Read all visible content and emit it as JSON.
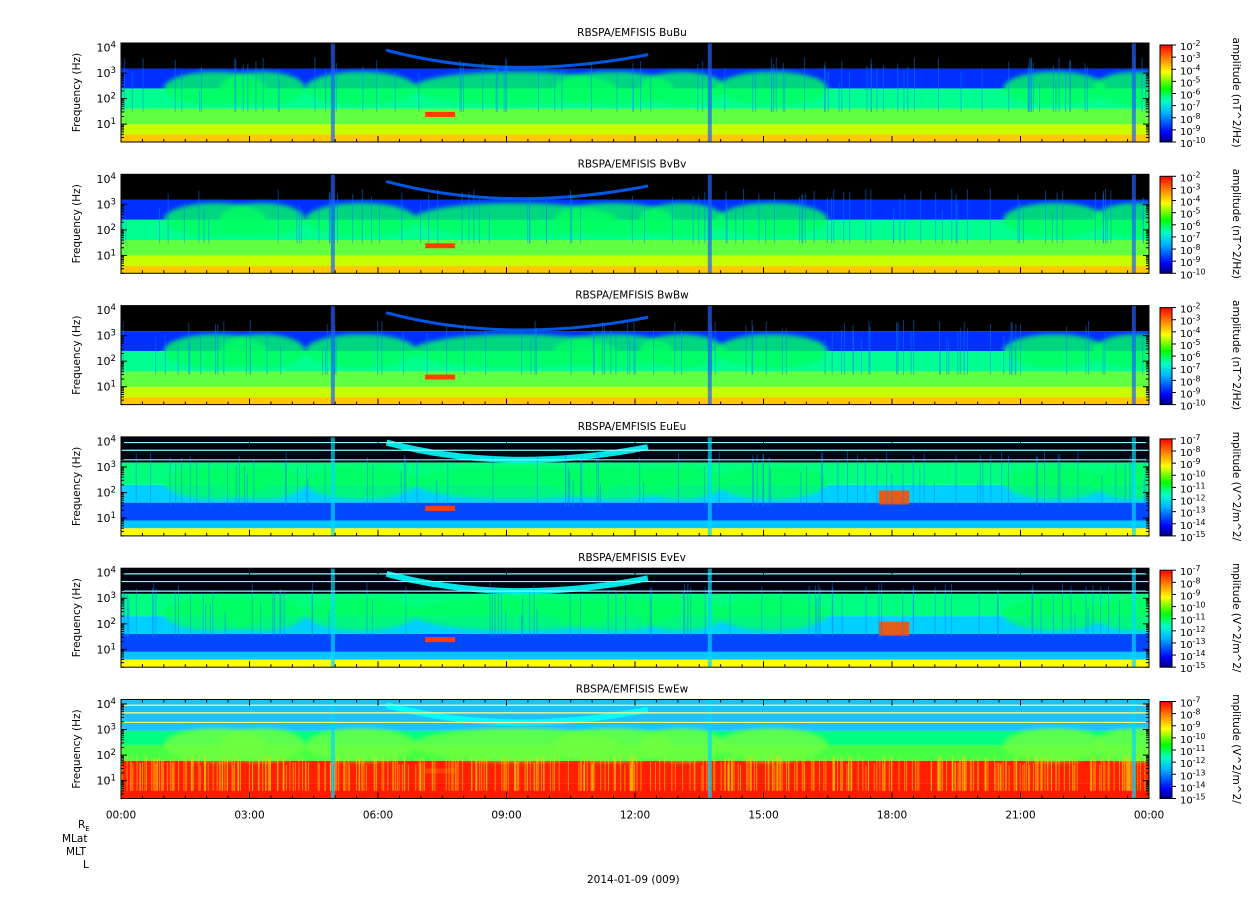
{
  "figure": {
    "date_label": "2014-01-09 (009)",
    "ephemeris_labels": [
      "R",
      "MLat",
      "MLT",
      "L"
    ],
    "re_subscript": "E"
  },
  "chart_data": [
    {
      "type": "heatmap",
      "title": "RBSPA/EMFISIS  BuBu",
      "ylabel": "Frequency (Hz)",
      "yscale": "log",
      "ylim": [
        2,
        15000
      ],
      "y_ticks": [
        10,
        100,
        1000,
        10000
      ],
      "y_tick_labels": [
        "10^1",
        "10^2",
        "10^3",
        "10^4"
      ],
      "x_tick_labels": [
        "00:00",
        "03:00",
        "06:00",
        "09:00",
        "12:00",
        "15:00",
        "18:00",
        "21:00",
        "00:00"
      ],
      "x_range_hours": [
        0,
        24
      ],
      "colorbar": {
        "label": "amplitude (nT^2/Hz)",
        "scale": "log",
        "range_exponents": [
          -10,
          -2
        ],
        "tick_labels": [
          "10^-2",
          "10^-3",
          "10^-4",
          "10^-5",
          "10^-6",
          "10^-7",
          "10^-8",
          "10^-9",
          "10^-10"
        ]
      },
      "grid": false
    },
    {
      "type": "heatmap",
      "title": "RBSPA/EMFISIS  BvBv",
      "ylabel": "Frequency (Hz)",
      "yscale": "log",
      "ylim": [
        2,
        15000
      ],
      "y_ticks": [
        10,
        100,
        1000,
        10000
      ],
      "y_tick_labels": [
        "10^1",
        "10^2",
        "10^3",
        "10^4"
      ],
      "x_tick_labels": [
        "00:00",
        "03:00",
        "06:00",
        "09:00",
        "12:00",
        "15:00",
        "18:00",
        "21:00",
        "00:00"
      ],
      "x_range_hours": [
        0,
        24
      ],
      "colorbar": {
        "label": "amplitude (nT^2/Hz)",
        "scale": "log",
        "range_exponents": [
          -10,
          -2
        ],
        "tick_labels": [
          "10^-2",
          "10^-3",
          "10^-4",
          "10^-5",
          "10^-6",
          "10^-7",
          "10^-8",
          "10^-9",
          "10^-10"
        ]
      },
      "grid": false
    },
    {
      "type": "heatmap",
      "title": "RBSPA/EMFISIS  BwBw",
      "ylabel": "Frequency (Hz)",
      "yscale": "log",
      "ylim": [
        2,
        15000
      ],
      "y_ticks": [
        10,
        100,
        1000,
        10000
      ],
      "y_tick_labels": [
        "10^1",
        "10^2",
        "10^3",
        "10^4"
      ],
      "x_tick_labels": [
        "00:00",
        "03:00",
        "06:00",
        "09:00",
        "12:00",
        "15:00",
        "18:00",
        "21:00",
        "00:00"
      ],
      "x_range_hours": [
        0,
        24
      ],
      "colorbar": {
        "label": "amplitude (nT^2/Hz)",
        "scale": "log",
        "range_exponents": [
          -10,
          -2
        ],
        "tick_labels": [
          "10^-2",
          "10^-3",
          "10^-4",
          "10^-5",
          "10^-6",
          "10^-7",
          "10^-8",
          "10^-9",
          "10^-10"
        ]
      },
      "grid": false
    },
    {
      "type": "heatmap",
      "title": "RBSPA/EMFISIS  EuEu",
      "ylabel": "Frequency (Hz)",
      "yscale": "log",
      "ylim": [
        2,
        15000
      ],
      "y_ticks": [
        10,
        100,
        1000,
        10000
      ],
      "y_tick_labels": [
        "10^1",
        "10^2",
        "10^3",
        "10^4"
      ],
      "x_tick_labels": [
        "00:00",
        "03:00",
        "06:00",
        "09:00",
        "12:00",
        "15:00",
        "18:00",
        "21:00",
        "00:00"
      ],
      "x_range_hours": [
        0,
        24
      ],
      "colorbar": {
        "label": "mplitude (V^2/m^2/",
        "scale": "log",
        "range_exponents": [
          -15,
          -7
        ],
        "tick_labels": [
          "10^-7",
          "10^-8",
          "10^-9",
          "10^-10",
          "10^-11",
          "10^-12",
          "10^-13",
          "10^-14",
          "10^-15"
        ]
      },
      "grid": false
    },
    {
      "type": "heatmap",
      "title": "RBSPA/EMFISIS  EvEv",
      "ylabel": "Frequency (Hz)",
      "yscale": "log",
      "ylim": [
        2,
        15000
      ],
      "y_ticks": [
        10,
        100,
        1000,
        10000
      ],
      "y_tick_labels": [
        "10^1",
        "10^2",
        "10^3",
        "10^4"
      ],
      "x_tick_labels": [
        "00:00",
        "03:00",
        "06:00",
        "09:00",
        "12:00",
        "15:00",
        "18:00",
        "21:00",
        "00:00"
      ],
      "x_range_hours": [
        0,
        24
      ],
      "colorbar": {
        "label": "mplitude (V^2/m^2/",
        "scale": "log",
        "range_exponents": [
          -15,
          -7
        ],
        "tick_labels": [
          "10^-7",
          "10^-8",
          "10^-9",
          "10^-10",
          "10^-11",
          "10^-12",
          "10^-13",
          "10^-14",
          "10^-15"
        ]
      },
      "grid": false
    },
    {
      "type": "heatmap",
      "title": "RBSPA/EMFISIS  EwEw",
      "ylabel": "Frequency (Hz)",
      "yscale": "log",
      "ylim": [
        2,
        15000
      ],
      "y_ticks": [
        10,
        100,
        1000,
        10000
      ],
      "y_tick_labels": [
        "10^1",
        "10^2",
        "10^3",
        "10^4"
      ],
      "x_tick_labels": [
        "00:00",
        "03:00",
        "06:00",
        "09:00",
        "12:00",
        "15:00",
        "18:00",
        "21:00",
        "00:00"
      ],
      "x_range_hours": [
        0,
        24
      ],
      "colorbar": {
        "label": "mplitude (V^2/m^2/",
        "scale": "log",
        "range_exponents": [
          -15,
          -7
        ],
        "tick_labels": [
          "10^-7",
          "10^-8",
          "10^-9",
          "10^-10",
          "10^-11",
          "10^-12",
          "10^-13",
          "10^-14",
          "10^-15"
        ]
      },
      "grid": false
    }
  ]
}
